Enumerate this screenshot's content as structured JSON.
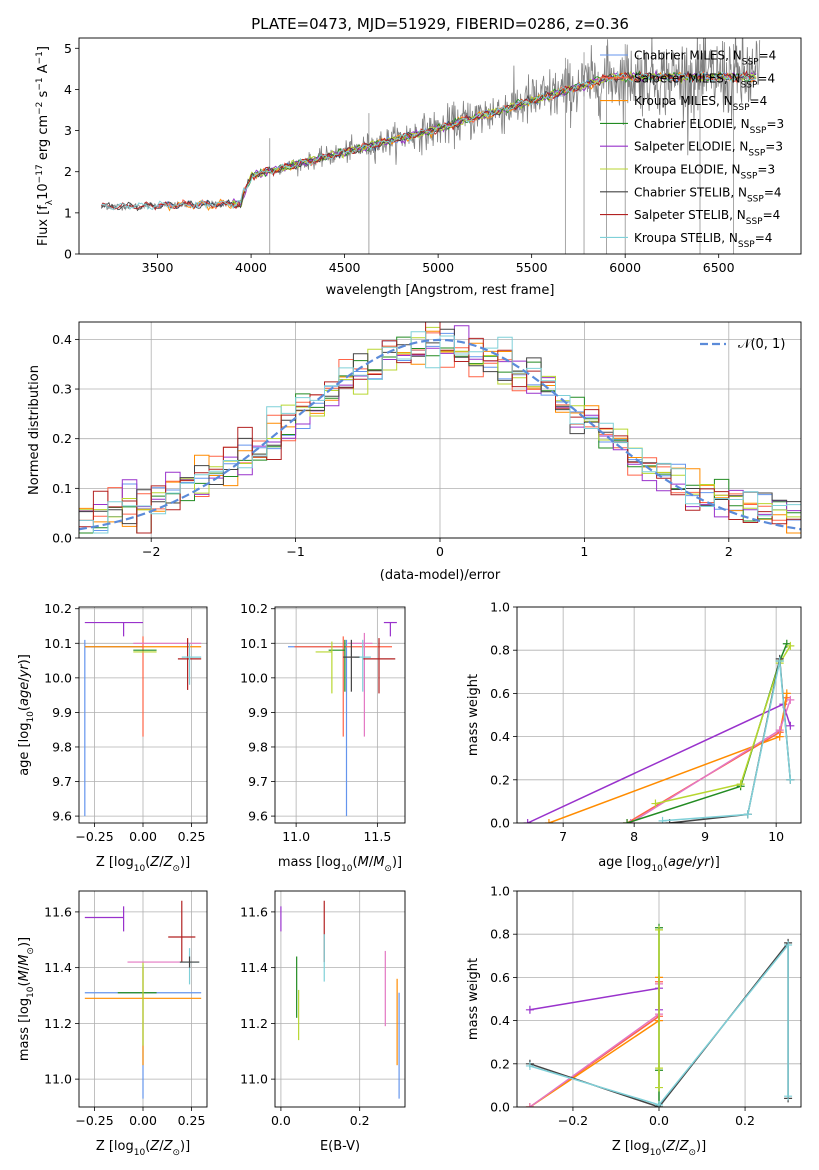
{
  "chart_data": [
    {
      "type": "line",
      "title": "PLATE=0473, MJD=51929, FIBERID=0286, z=0.36",
      "xlabel": "wavelength [Angstrom, rest frame]",
      "ylabel": "Flux [f_λ 10^-17 erg cm^-2 s^-1 A^-1]",
      "xlim": [
        3080,
        6940
      ],
      "ylim": [
        0,
        5.25
      ],
      "xticks": [
        3500,
        4000,
        4500,
        5000,
        5500,
        6000,
        6500
      ],
      "yticks": [
        0,
        1,
        2,
        3,
        4,
        5
      ],
      "legend": "top-right",
      "series": [
        {
          "name": "Chabrier MILES, N_SSP=4",
          "color": "#6495ed",
          "range": [
            3500,
            6700
          ]
        },
        {
          "name": "Salpeter MILES, N_SSP=4",
          "color": "#ff6347",
          "range": [
            3500,
            6700
          ]
        },
        {
          "name": "Kroupa MILES, N_SSP=4",
          "color": "#ff8c00",
          "range": [
            3540,
            6700
          ]
        },
        {
          "name": "Chabrier ELODIE, N_SSP=3",
          "color": "#228b22",
          "range": [
            3900,
            6700
          ]
        },
        {
          "name": "Salpeter ELODIE, N_SSP=3",
          "color": "#9932cc",
          "range": [
            3900,
            6700
          ]
        },
        {
          "name": "Kroupa ELODIE, N_SSP=3",
          "color": "#b8d630",
          "range": [
            3900,
            6700
          ]
        },
        {
          "name": "Chabrier STELIB, N_SSP=4",
          "color": "#444444",
          "range": [
            3200,
            6700
          ]
        },
        {
          "name": "Salpeter STELIB, N_SSP=4",
          "color": "#b22222",
          "range": [
            3200,
            6700
          ]
        },
        {
          "name": "Kroupa STELIB, N_SSP=4",
          "color": "#7fd0d8",
          "range": [
            3200,
            6700
          ]
        }
      ],
      "data_color": "#808080"
    },
    {
      "type": "step",
      "xlabel": "(data-model)/error",
      "ylabel": "Normed distribution",
      "xlim": [
        -2.5,
        2.5
      ],
      "ylim": [
        0,
        0.435
      ],
      "xticks": [
        -2,
        -1,
        0,
        1,
        2
      ],
      "yticks": [
        0.0,
        0.1,
        0.2,
        0.3,
        0.4
      ],
      "grid": true,
      "legend": "top-right",
      "reference_curve": {
        "name": "N(0,1)",
        "label_tex": "𝒩(0, 1)",
        "color": "#5b8bd9",
        "mean": 0,
        "sigma": 1
      },
      "bin_width": 0.1,
      "series_colors": [
        "#6495ed",
        "#ff6347",
        "#ff8c00",
        "#228b22",
        "#9932cc",
        "#b8d630",
        "#444444",
        "#b22222",
        "#7fd0d8"
      ]
    },
    {
      "type": "errorbar",
      "xlabel": "Z [log10(Z/Z⊙)]",
      "ylabel": "age [log10(age/yr)]",
      "xlim": [
        -0.33,
        0.33
      ],
      "ylim": [
        9.58,
        10.205
      ],
      "xticks": [
        -0.25,
        0.0,
        0.25
      ],
      "xticklabels": [
        "−0.25",
        "0.00",
        "0.25"
      ],
      "yticks": [
        9.6,
        9.7,
        9.8,
        9.9,
        10.0,
        10.1,
        10.2
      ],
      "grid": true,
      "points": [
        {
          "x": -0.3,
          "y": 10.09,
          "xerr": [
            0.0,
            0.3
          ],
          "yerr": [
            0.49,
            0.02
          ],
          "color": "#6495ed"
        },
        {
          "x": -0.3,
          "y": 10.09,
          "xerr": [
            0.0,
            0.6
          ],
          "yerr": [
            0.0,
            0.0
          ],
          "color": "#ff8c00"
        },
        {
          "x": 0.0,
          "y": 10.09,
          "xerr": [
            0.0,
            0.0
          ],
          "yerr": [
            0.26,
            0.03
          ],
          "color": "#ff6347"
        },
        {
          "x": -0.1,
          "y": 10.16,
          "xerr": [
            0.2,
            0.1
          ],
          "yerr": [
            0.04,
            0.0
          ],
          "color": "#9932cc"
        },
        {
          "x": -0.05,
          "y": 10.08,
          "xerr": [
            0.0,
            0.12
          ],
          "yerr": [
            0.0,
            0.0
          ],
          "color": "#228b22"
        },
        {
          "x": -0.05,
          "y": 10.075,
          "xerr": [
            0.0,
            0.12
          ],
          "yerr": [
            0.0,
            0.0
          ],
          "color": "#b8d630"
        },
        {
          "x": -0.05,
          "y": 10.1,
          "xerr": [
            0.0,
            0.35
          ],
          "yerr": [
            0.0,
            0.0
          ],
          "color": "#e377c2"
        },
        {
          "x": 0.23,
          "y": 10.055,
          "xerr": [
            0.05,
            0.07
          ],
          "yerr": [
            0.09,
            0.06
          ],
          "color": "#b22222"
        },
        {
          "x": 0.24,
          "y": 10.06,
          "xerr": [
            0.04,
            0.06
          ],
          "yerr": [
            0.08,
            0.04
          ],
          "color": "#7fd0d8"
        }
      ]
    },
    {
      "type": "errorbar",
      "xlabel": "mass [log10(M/M⊙)]",
      "xlim": [
        10.87,
        11.67
      ],
      "ylim": [
        9.58,
        10.205
      ],
      "xticks": [
        11.0,
        11.5
      ],
      "xticklabels": [
        "11.0",
        "11.5"
      ],
      "yticks": [
        9.6,
        9.7,
        9.8,
        9.9,
        10.0,
        10.1,
        10.2
      ],
      "grid": true,
      "points": [
        {
          "x": 11.31,
          "y": 10.09,
          "xerr": [
            0.36,
            0.0
          ],
          "yerr": [
            0.49,
            0.02
          ],
          "color": "#6495ed"
        },
        {
          "x": 11.29,
          "y": 10.09,
          "xerr": [
            0.3,
            0.3
          ],
          "yerr": [
            0.26,
            0.03
          ],
          "color": "#ff6347"
        },
        {
          "x": 11.3,
          "y": 10.08,
          "xerr": [
            0.1,
            0.0
          ],
          "yerr": [
            0.12,
            0.03
          ],
          "color": "#228b22"
        },
        {
          "x": 11.22,
          "y": 10.075,
          "xerr": [
            0.1,
            0.0
          ],
          "yerr": [
            0.12,
            0.03
          ],
          "color": "#b8d630"
        },
        {
          "x": 11.42,
          "y": 10.1,
          "xerr": [
            0.1,
            0.05
          ],
          "yerr": [
            0.27,
            0.03
          ],
          "color": "#e377c2"
        },
        {
          "x": 11.58,
          "y": 10.16,
          "xerr": [
            0.04,
            0.04
          ],
          "yerr": [
            0.04,
            0.0
          ],
          "color": "#9932cc"
        },
        {
          "x": 11.51,
          "y": 10.055,
          "xerr": [
            0.1,
            0.1
          ],
          "yerr": [
            0.1,
            0.06
          ],
          "color": "#b22222"
        },
        {
          "x": 11.41,
          "y": 10.06,
          "xerr": [
            0.05,
            0.05
          ],
          "yerr": [
            0.1,
            0.05
          ],
          "color": "#7fd0d8"
        },
        {
          "x": 11.34,
          "y": 10.06,
          "xerr": [
            0.05,
            0.05
          ],
          "yerr": [
            0.1,
            0.05
          ],
          "color": "#444444"
        }
      ]
    },
    {
      "type": "line",
      "xlabel": "age [log10(age/yr)]",
      "ylabel": "mass weight",
      "xlim": [
        6.35,
        10.35
      ],
      "ylim": [
        0,
        1
      ],
      "xticks": [
        7,
        8,
        9,
        10
      ],
      "yticks": [
        0.0,
        0.2,
        0.4,
        0.6,
        0.8,
        1.0
      ],
      "grid": true,
      "series": [
        {
          "color": "#9932cc",
          "x": [
            6.5,
            10.1,
            10.2
          ],
          "y": [
            0.0,
            0.55,
            0.45
          ]
        },
        {
          "color": "#ff6347",
          "x": [
            7.9,
            10.05,
            10.15
          ],
          "y": [
            0.0,
            0.42,
            0.58
          ]
        },
        {
          "color": "#ff8c00",
          "x": [
            6.8,
            10.05,
            10.15
          ],
          "y": [
            0.0,
            0.4,
            0.6
          ]
        },
        {
          "color": "#e377c2",
          "x": [
            7.95,
            10.05,
            10.2
          ],
          "y": [
            0.0,
            0.43,
            0.57
          ]
        },
        {
          "color": "#228b22",
          "x": [
            7.9,
            9.5,
            10.05,
            10.15
          ],
          "y": [
            0.0,
            0.17,
            0.75,
            0.83
          ]
        },
        {
          "color": "#b8d630",
          "x": [
            8.3,
            9.5,
            10.05,
            10.2
          ],
          "y": [
            0.09,
            0.18,
            0.74,
            0.82
          ]
        },
        {
          "color": "#444444",
          "x": [
            8.5,
            9.6,
            10.05,
            10.2
          ],
          "y": [
            0.0,
            0.04,
            0.76,
            0.2
          ]
        },
        {
          "color": "#7fd0d8",
          "x": [
            8.4,
            9.6,
            10.05,
            10.2
          ],
          "y": [
            0.01,
            0.04,
            0.75,
            0.2
          ]
        }
      ]
    },
    {
      "type": "errorbar",
      "xlabel": "Z [log10(Z/Z⊙)]",
      "ylabel": "mass [log10(M/M⊙)]",
      "xlim": [
        -0.33,
        0.33
      ],
      "ylim": [
        10.9,
        11.675
      ],
      "xticks": [
        -0.25,
        0.0,
        0.25
      ],
      "xticklabels": [
        "−0.25",
        "0.00",
        "0.25"
      ],
      "yticks": [
        11.0,
        11.2,
        11.4,
        11.6
      ],
      "grid": true,
      "points": [
        {
          "x": -0.1,
          "y": 11.58,
          "xerr": [
            0.2,
            0.0
          ],
          "yerr": [
            0.05,
            0.04
          ],
          "color": "#9932cc"
        },
        {
          "x": 0.0,
          "y": 11.31,
          "xerr": [
            0.3,
            0.3
          ],
          "yerr": [
            0.38,
            0.1
          ],
          "color": "#6495ed"
        },
        {
          "x": 0.0,
          "y": 11.29,
          "xerr": [
            0.3,
            0.3
          ],
          "yerr": [
            0.24,
            0.11
          ],
          "color": "#ff8c00"
        },
        {
          "x": -0.05,
          "y": 11.31,
          "xerr": [
            0.08,
            0.12
          ],
          "yerr": [
            0.0,
            0.0
          ],
          "color": "#228b22"
        },
        {
          "x": 0.0,
          "y": 11.22,
          "xerr": [
            0.0,
            0.0
          ],
          "yerr": [
            0.1,
            0.2
          ],
          "color": "#b8d630"
        },
        {
          "x": 0.06,
          "y": 11.42,
          "xerr": [
            0.14,
            0.14
          ],
          "yerr": [
            0.0,
            0.0
          ],
          "color": "#e377c2"
        },
        {
          "x": 0.2,
          "y": 11.51,
          "xerr": [
            0.07,
            0.07
          ],
          "yerr": [
            0.09,
            0.13
          ],
          "color": "#b22222"
        },
        {
          "x": 0.24,
          "y": 11.42,
          "xerr": [
            0.05,
            0.05
          ],
          "yerr": [
            0.08,
            0.05
          ],
          "color": "#7fd0d8"
        },
        {
          "x": 0.24,
          "y": 11.42,
          "xerr": [
            0.05,
            0.05
          ],
          "yerr": [
            0.02,
            0.02
          ],
          "color": "#444444"
        }
      ]
    },
    {
      "type": "errorbar",
      "xlabel": "E(B-V)",
      "xlim": [
        -0.015,
        0.315
      ],
      "ylim": [
        10.9,
        11.675
      ],
      "xticks": [
        0.0,
        0.2
      ],
      "xticklabels": [
        "0.0",
        "0.2"
      ],
      "yticks": [
        11.0,
        11.2,
        11.4,
        11.6
      ],
      "grid": true,
      "points": [
        {
          "x": 0.0,
          "y": 11.58,
          "xerr": [
            0.0,
            0.0
          ],
          "yerr": [
            0.05,
            0.04
          ],
          "color": "#9932cc"
        },
        {
          "x": 0.04,
          "y": 11.31,
          "xerr": [
            0.0,
            0.0
          ],
          "yerr": [
            0.09,
            0.13
          ],
          "color": "#228b22"
        },
        {
          "x": 0.045,
          "y": 11.22,
          "xerr": [
            0.0,
            0.0
          ],
          "yerr": [
            0.08,
            0.1
          ],
          "color": "#b8d630"
        },
        {
          "x": 0.11,
          "y": 11.51,
          "xerr": [
            0.0,
            0.0
          ],
          "yerr": [
            0.09,
            0.13
          ],
          "color": "#b22222"
        },
        {
          "x": 0.11,
          "y": 11.42,
          "xerr": [
            0.0,
            0.0
          ],
          "yerr": [
            0.07,
            0.1
          ],
          "color": "#7fd0d8"
        },
        {
          "x": 0.265,
          "y": 11.31,
          "xerr": [
            0.0,
            0.0
          ],
          "yerr": [
            0.12,
            0.15
          ],
          "color": "#e377c2"
        },
        {
          "x": 0.295,
          "y": 11.29,
          "xerr": [
            0.0,
            0.0
          ],
          "yerr": [
            0.24,
            0.07
          ],
          "color": "#ff8c00"
        },
        {
          "x": 0.3,
          "y": 11.31,
          "xerr": [
            0.0,
            0.0
          ],
          "yerr": [
            0.38,
            0.0
          ],
          "color": "#6495ed"
        }
      ]
    },
    {
      "type": "line",
      "xlabel": "Z [log10(Z/Z⊙)]",
      "ylabel": "mass weight",
      "xlim": [
        -0.33,
        0.33
      ],
      "ylim": [
        0,
        1
      ],
      "xticks": [
        -0.2,
        0.0,
        0.2
      ],
      "xticklabels": [
        "−0.2",
        "0.0",
        "0.2"
      ],
      "yticks": [
        0.0,
        0.2,
        0.4,
        0.6,
        0.8,
        1.0
      ],
      "grid": true,
      "series": [
        {
          "color": "#9932cc",
          "x": [
            -0.3,
            0.0,
            0.0
          ],
          "y": [
            0.45,
            0.55,
            0.45
          ]
        },
        {
          "color": "#ff6347",
          "x": [
            -0.3,
            0.0,
            0.0
          ],
          "y": [
            0.0,
            0.42,
            0.58
          ]
        },
        {
          "color": "#ff8c00",
          "x": [
            -0.3,
            0.0,
            0.0
          ],
          "y": [
            0.0,
            0.4,
            0.6
          ]
        },
        {
          "color": "#e377c2",
          "x": [
            -0.3,
            0.0,
            0.0
          ],
          "y": [
            0.0,
            0.43,
            0.57
          ]
        },
        {
          "color": "#228b22",
          "x": [
            0.0,
            0.0,
            0.0
          ],
          "y": [
            0.0,
            0.17,
            0.83
          ]
        },
        {
          "color": "#b8d630",
          "x": [
            0.0,
            0.0,
            0.0
          ],
          "y": [
            0.09,
            0.18,
            0.82
          ]
        },
        {
          "color": "#444444",
          "x": [
            -0.3,
            0.0,
            0.3,
            0.3
          ],
          "y": [
            0.2,
            0.0,
            0.76,
            0.04
          ]
        },
        {
          "color": "#7fd0d8",
          "x": [
            -0.3,
            0.0,
            0.3,
            0.3
          ],
          "y": [
            0.19,
            0.01,
            0.75,
            0.05
          ]
        }
      ]
    }
  ]
}
